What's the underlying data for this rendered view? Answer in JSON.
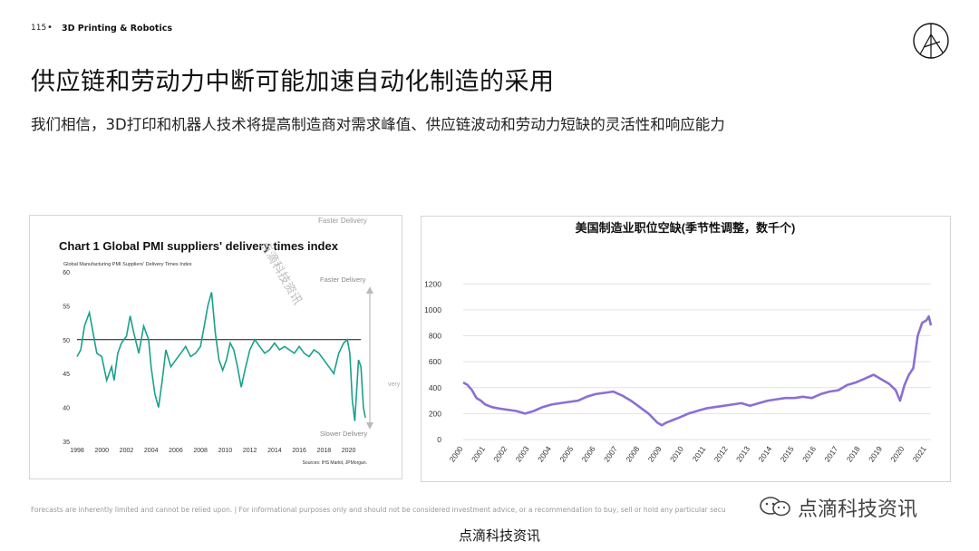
{
  "header": {
    "page_number": "115",
    "separator": "•",
    "section": "3D Printing & Robotics"
  },
  "title": "供应链和劳动力中断可能加速自动化制造的采用",
  "subtitle": "我们相信，3D打印和机器人技术将提高制造商对需求峰值、供应链波动和劳动力短缺的灵活性和响应能力",
  "footer": "Forecasts are inherently limited and cannot be relied upon. | For informational purposes only and should not be considered investment advice, or a recommendation to buy, sell or hold any particular secu",
  "watermarks": {
    "right": "点滴科技资讯",
    "bottom": "点滴科技资讯",
    "diagonal": "点滴科技资讯"
  },
  "colors": {
    "teal": "#1aa08c",
    "purple": "#8b6fd3",
    "black": "#111111",
    "gray": "#888888"
  },
  "chart_data": [
    {
      "type": "line",
      "title": "Chart 1 Global PMI suppliers' delivery times index",
      "subtitle": "Global Manufacturing PMI Suppliers' Delivery Times Index",
      "source": "Sources: IHS Markit, JPMorgan.",
      "annotations": {
        "top": "Faster Delivery",
        "top_right": "Faster Delivery",
        "bottom_right": "Slower Delivery",
        "cut": "very"
      },
      "ylim": [
        35,
        60
      ],
      "yticks": [
        "60",
        "55",
        "50",
        "45",
        "40",
        "35"
      ],
      "xlim": [
        1998,
        2021.5
      ],
      "xticks": [
        "1998",
        "2000",
        "2002",
        "2004",
        "2006",
        "2008",
        "2010",
        "2012",
        "2014",
        "2016",
        "2018",
        "2020"
      ],
      "reference_line": 50,
      "series": [
        {
          "x": [
            1998.0,
            1998.3,
            1998.6,
            1999.0,
            1999.3,
            1999.6,
            2000.0,
            2000.4,
            2000.8,
            2001.0,
            2001.3,
            2001.6,
            2002.0,
            2002.3,
            2002.6,
            2003.0,
            2003.4,
            2003.8,
            2004.0,
            2004.3,
            2004.6,
            2004.9,
            2005.2,
            2005.6,
            2006.0,
            2006.4,
            2006.8,
            2007.2,
            2007.6,
            2008.0,
            2008.3,
            2008.6,
            2008.9,
            2009.2,
            2009.5,
            2009.8,
            2010.1,
            2010.4,
            2010.7,
            2011.0,
            2011.3,
            2011.6,
            2012.0,
            2012.4,
            2012.8,
            2013.2,
            2013.6,
            2014.0,
            2014.4,
            2014.8,
            2015.2,
            2015.6,
            2016.0,
            2016.4,
            2016.8,
            2017.2,
            2017.6,
            2018.0,
            2018.4,
            2018.8,
            2019.2,
            2019.6,
            2019.9,
            2020.1,
            2020.3,
            2020.5,
            2020.8,
            2021.0,
            2021.2,
            2021.35
          ],
          "y": [
            47.5,
            48.5,
            52,
            54,
            51,
            48,
            47.5,
            44,
            46,
            44,
            48,
            49.5,
            50.5,
            53.5,
            51,
            48,
            52,
            50,
            46,
            42,
            40,
            44,
            48.5,
            46,
            47,
            48,
            49,
            47.5,
            48,
            49,
            52,
            55,
            57,
            51,
            47,
            45.5,
            47,
            49.5,
            48.5,
            46,
            43,
            45.5,
            48.5,
            50,
            49,
            48,
            48.5,
            49.5,
            48.5,
            49,
            48.5,
            48,
            49,
            48,
            47.5,
            48.5,
            48,
            47,
            46,
            45,
            48,
            49.5,
            50,
            48,
            41,
            38,
            47,
            46,
            40,
            38.5
          ]
        }
      ]
    },
    {
      "type": "line",
      "title": "美国制造业职位空缺(季节性调整，数千个)",
      "ylim": [
        0,
        1300
      ],
      "yticks": [
        "0",
        "200",
        "400",
        "600",
        "800",
        "1000",
        "1200"
      ],
      "xlim": [
        2000,
        2021.2
      ],
      "xticks": [
        "2000",
        "2001",
        "2002",
        "2003",
        "2004",
        "2005",
        "2006",
        "2007",
        "2008",
        "2009",
        "2010",
        "2011",
        "2012",
        "2013",
        "2014",
        "2015",
        "2016",
        "2017",
        "2018",
        "2019",
        "2020",
        "2021"
      ],
      "series": [
        {
          "x": [
            2000.0,
            2000.2,
            2000.4,
            2000.6,
            2000.8,
            2001.0,
            2001.3,
            2001.6,
            2002.0,
            2002.4,
            2002.8,
            2003.2,
            2003.6,
            2004.0,
            2004.4,
            2004.8,
            2005.2,
            2005.6,
            2006.0,
            2006.4,
            2006.8,
            2007.2,
            2007.6,
            2008.0,
            2008.4,
            2008.8,
            2009.0,
            2009.2,
            2009.5,
            2009.8,
            2010.2,
            2010.6,
            2011.0,
            2011.4,
            2011.8,
            2012.2,
            2012.6,
            2013.0,
            2013.4,
            2013.8,
            2014.2,
            2014.6,
            2015.0,
            2015.4,
            2015.8,
            2016.2,
            2016.6,
            2017.0,
            2017.4,
            2017.8,
            2018.2,
            2018.6,
            2019.0,
            2019.3,
            2019.6,
            2019.8,
            2020.0,
            2020.2,
            2020.4,
            2020.6,
            2020.8,
            2021.0,
            2021.1,
            2021.2
          ],
          "y": [
            440,
            420,
            380,
            320,
            300,
            270,
            250,
            240,
            230,
            220,
            200,
            220,
            250,
            270,
            280,
            290,
            300,
            330,
            350,
            360,
            370,
            340,
            300,
            250,
            200,
            130,
            110,
            130,
            150,
            170,
            200,
            220,
            240,
            250,
            260,
            270,
            280,
            260,
            280,
            300,
            310,
            320,
            320,
            330,
            320,
            350,
            370,
            380,
            420,
            440,
            470,
            500,
            460,
            430,
            380,
            300,
            420,
            500,
            550,
            800,
            900,
            920,
            950,
            880
          ]
        }
      ]
    }
  ]
}
